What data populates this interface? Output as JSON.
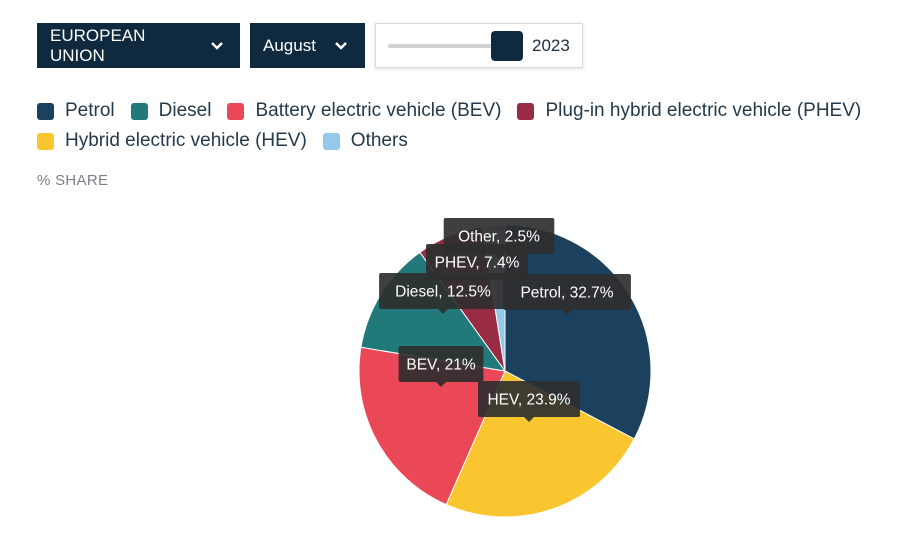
{
  "controls": {
    "region_label": "EUROPEAN UNION",
    "month_label": "August",
    "year_label": "2023"
  },
  "legend": {
    "row1": [
      {
        "label": "Petrol",
        "color": "#1b415e"
      },
      {
        "label": "Diesel",
        "color": "#217a79"
      },
      {
        "label": "Battery electric vehicle (BEV)",
        "color": "#ea4757"
      },
      {
        "label": "Plug-in hybrid electric vehicle (PHEV)",
        "color": "#9a2b45"
      }
    ],
    "row2": [
      {
        "label": "Hybrid electric vehicle (HEV)",
        "color": "#f9c630"
      },
      {
        "label": "Others",
        "color": "#94c9ea"
      }
    ]
  },
  "unit_label": "% SHARE",
  "chart_data": {
    "type": "pie",
    "title": "",
    "unit": "% SHARE",
    "slices": [
      {
        "name": "Petrol",
        "value": 32.7,
        "label": "Petrol, 32.7%",
        "color": "#1b415e"
      },
      {
        "name": "HEV",
        "value": 23.9,
        "label": "HEV, 23.9%",
        "color": "#f9c630"
      },
      {
        "name": "BEV",
        "value": 21,
        "label": "BEV, 21%",
        "color": "#ea4757"
      },
      {
        "name": "Diesel",
        "value": 12.5,
        "label": "Diesel, 12.5%",
        "color": "#217a79"
      },
      {
        "name": "PHEV",
        "value": 7.4,
        "label": "PHEV, 7.4%",
        "color": "#9a2b45"
      },
      {
        "name": "Other",
        "value": 2.5,
        "label": "Other, 2.5%",
        "color": "#94c9ea"
      }
    ]
  }
}
